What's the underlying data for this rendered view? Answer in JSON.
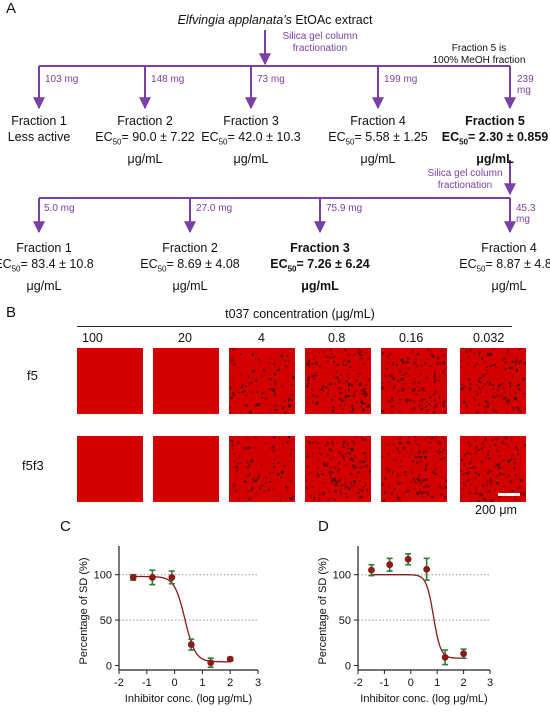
{
  "panelA": {
    "letter": "A",
    "source_italic": "Elfvingia applanata's",
    "source_rest": " EtOAc extract",
    "step1_note_line1": "Silica gel column",
    "step1_note_line2": "fractionation",
    "f5_note_line1": "Fraction 5 is",
    "f5_note_line2": "100% MeOH fraction",
    "top_masses": [
      "103 mg",
      "148 mg",
      "73 mg",
      "199 mg",
      "239 mg"
    ],
    "top_fractions": [
      {
        "name": "Fraction 1",
        "line2": "Less active",
        "line3": "",
        "bold": false
      },
      {
        "name": "Fraction 2",
        "ec_value": "= 90.0 ± 7.22",
        "line3": "μg/mL",
        "bold": false
      },
      {
        "name": "Fraction 3",
        "ec_value": "= 42.0 ± 10.3",
        "line3": "μg/mL",
        "bold": false
      },
      {
        "name": "Fraction 4",
        "ec_value": "= 5.58 ± 1.25",
        "line3": "μg/mL",
        "bold": false
      },
      {
        "name": "Fraction 5",
        "ec_value": "= 2.30 ± 0.859",
        "line3": "μg/mL",
        "bold": true
      }
    ],
    "step2_note_line1": "Silica gel column",
    "step2_note_line2": "fractionation",
    "bottom_masses": [
      "5.0 mg",
      "27.0 mg",
      "75.9 mg",
      "45.3 mg"
    ],
    "bottom_fractions": [
      {
        "name": "Fraction 1",
        "ec_value": "= 83.4 ± 10.8",
        "line3": "μg/mL",
        "bold": false
      },
      {
        "name": "Fraction 2",
        "ec_value": "= 8.69 ± 4.08",
        "line3": "μg/mL",
        "bold": false
      },
      {
        "name": "Fraction 3",
        "ec_value": "= 7.26 ± 6.24",
        "line3": "μg/mL",
        "bold": true
      },
      {
        "name": "Fraction 4",
        "ec_value": "= 8.87 ± 4.85",
        "line3": "μg/mL",
        "bold": false
      }
    ],
    "ec_label": "EC",
    "ec_sub": "50"
  },
  "panelB": {
    "letter": "B",
    "header": "t037 concentration (μg/mL)",
    "concentrations": [
      "100",
      "20",
      "4",
      "0.8",
      "0.16",
      "0.032"
    ],
    "rows": [
      "f5",
      "f5f3"
    ],
    "scale_label": "200 μm"
  },
  "panelC": {
    "letter": "C"
  },
  "panelD": {
    "letter": "D"
  },
  "chart_data": [
    {
      "type": "scatter",
      "panel": "C",
      "xlabel": "Inhibitor conc. (log μg/mL)",
      "ylabel": "Percentage of SD (%)",
      "xlim": [
        -2,
        3
      ],
      "ylim": [
        -5,
        125
      ],
      "xticks": [
        "-2",
        "-1",
        "0",
        "1",
        "2",
        "3"
      ],
      "yticks": [
        "0",
        "50",
        "100"
      ],
      "points": [
        {
          "x": -1.49,
          "y": 97,
          "err": 3
        },
        {
          "x": -0.8,
          "y": 97,
          "err": 8
        },
        {
          "x": -0.1,
          "y": 97,
          "err": 7
        },
        {
          "x": 0.6,
          "y": 23,
          "err": 6
        },
        {
          "x": 1.3,
          "y": 3,
          "err": 5
        },
        {
          "x": 2.0,
          "y": 7,
          "err": 2
        }
      ],
      "fit": {
        "top": 98,
        "bottom": 4,
        "logEC50": 0.37,
        "hill": 2.3
      },
      "marker_color": "#8b1a1a",
      "line_color": "#8b1a1a",
      "errorbar_color": "#2e7d32",
      "grid": "dotted horizontal at 50, 100"
    },
    {
      "type": "scatter",
      "panel": "D",
      "xlabel": "Inhibitor conc. (log μg/mL)",
      "ylabel": "Percentage of SD (%)",
      "xlim": [
        -2,
        3
      ],
      "ylim": [
        -5,
        125
      ],
      "xticks": [
        "-2",
        "-1",
        "0",
        "1",
        "2",
        "3"
      ],
      "yticks": [
        "0",
        "50",
        "100"
      ],
      "points": [
        {
          "x": -1.49,
          "y": 105,
          "err": 6
        },
        {
          "x": -0.8,
          "y": 111,
          "err": 7
        },
        {
          "x": -0.1,
          "y": 117,
          "err": 6
        },
        {
          "x": 0.6,
          "y": 106,
          "err": 12
        },
        {
          "x": 1.3,
          "y": 9,
          "err": 8
        },
        {
          "x": 2.0,
          "y": 13,
          "err": 5
        }
      ],
      "fit": {
        "top": 100,
        "bottom": 8,
        "logEC50": 0.86,
        "hill": 3.2
      },
      "marker_color": "#8b1a1a",
      "line_color": "#8b1a1a",
      "errorbar_color": "#2e7d32",
      "grid": "dotted horizontal at 50, 100"
    }
  ],
  "colors": {
    "arrow": "#7b3fa8",
    "note": "#7b3fa8",
    "tissue": "#d40000"
  }
}
